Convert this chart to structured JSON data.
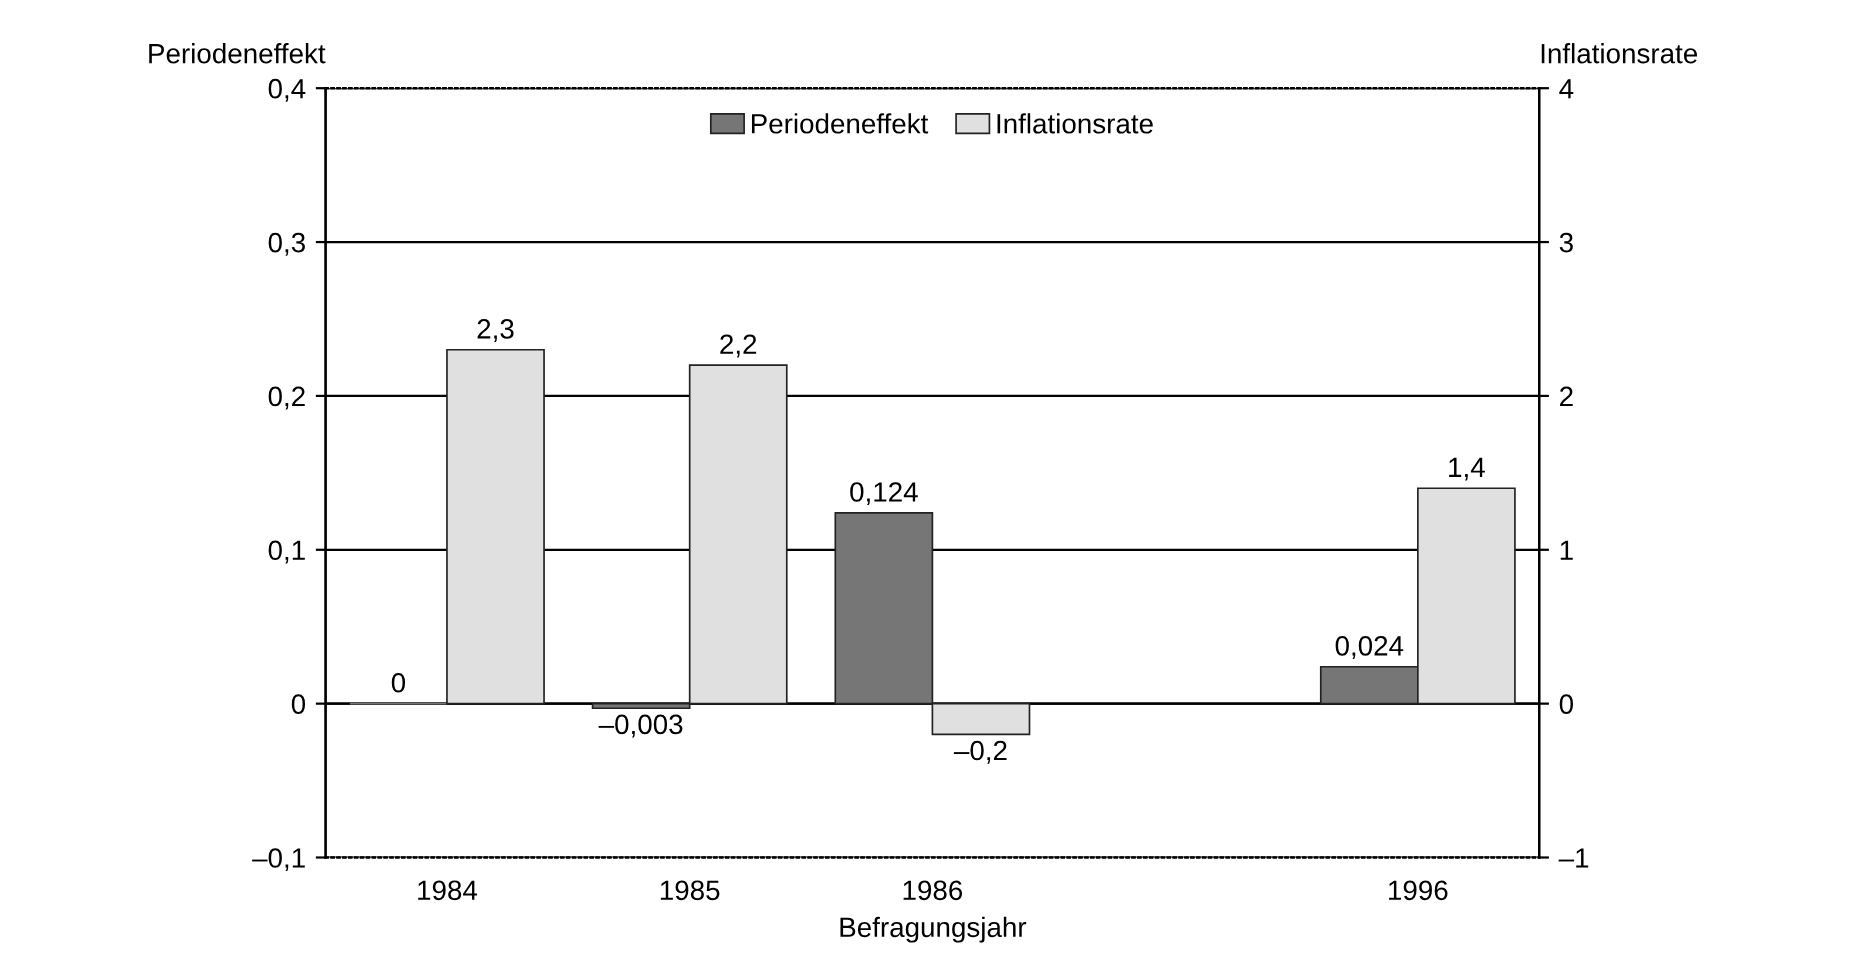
{
  "chart_data": {
    "type": "bar",
    "xlabel": "Befragungsjahr",
    "ylabel": "Periodeneffekt",
    "y2label": "Inflationsrate",
    "categories": [
      "1984",
      "1985",
      "1986",
      null,
      "1996"
    ],
    "series": [
      {
        "name": "Periodeneffekt",
        "color": "#767676",
        "values": [
          0,
          -0.003,
          0.124,
          null,
          0.024
        ],
        "value_labels": [
          "0",
          "–0,003",
          "0,124",
          null,
          "0,024"
        ]
      },
      {
        "name": "Inflationsrate",
        "color": "#e0e0e0",
        "axis": "y2",
        "values": [
          2.3,
          2.2,
          -0.2,
          null,
          1.4
        ],
        "value_labels": [
          "2,3",
          "2,2",
          "–0,2",
          null,
          "1,4"
        ]
      }
    ],
    "ylim": [
      -0.1,
      0.4
    ],
    "yticks": [
      {
        "value": -0.1,
        "label": "–0,1"
      },
      0,
      {
        "value": 0.1,
        "label": "0,1"
      },
      {
        "value": 0.2,
        "label": "0,2"
      },
      {
        "value": 0.3,
        "label": "0,3"
      },
      {
        "value": 0.4,
        "label": "0,4"
      }
    ],
    "y2lim": [
      -1,
      4
    ],
    "y2ticks": [
      {
        "value": -1,
        "label": "–1"
      },
      0,
      1,
      2,
      3,
      4
    ],
    "grid": "y",
    "legend": "top"
  }
}
